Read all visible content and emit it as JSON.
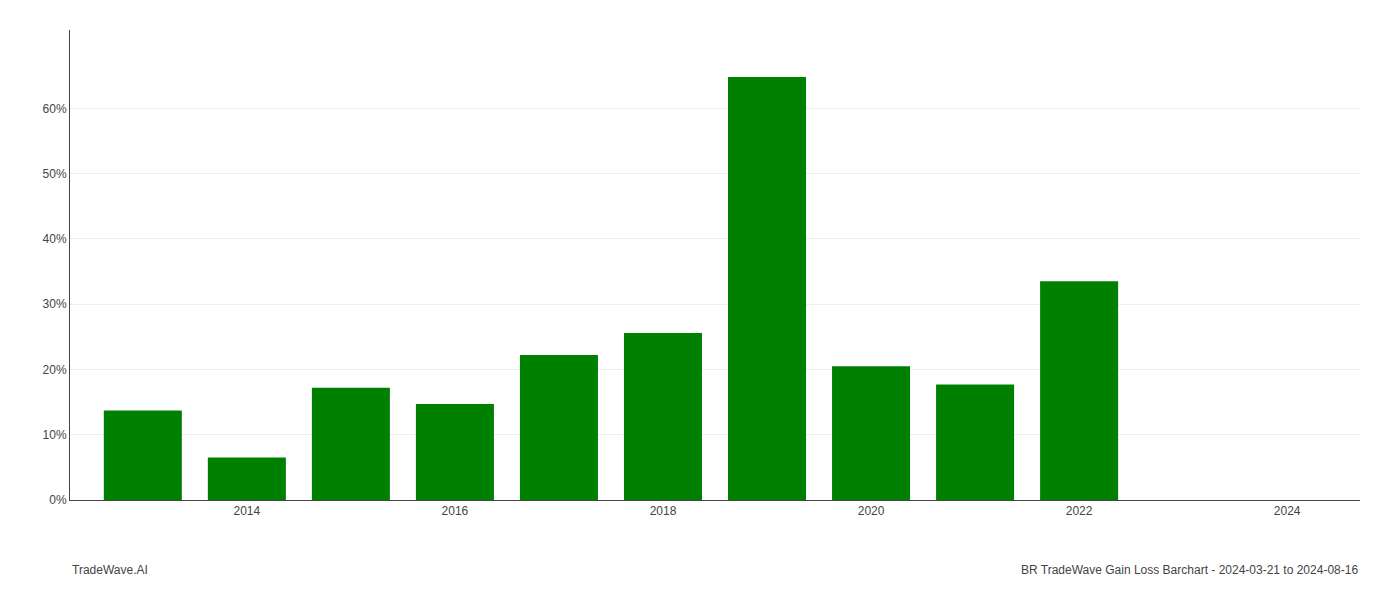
{
  "chart_data": {
    "type": "bar",
    "x": [
      2013,
      2014,
      2015,
      2016,
      2017,
      2018,
      2019,
      2020,
      2021,
      2022
    ],
    "values": [
      0.137,
      0.065,
      0.172,
      0.147,
      0.222,
      0.256,
      0.648,
      0.205,
      0.177,
      0.335
    ],
    "color": "#008000",
    "xlim": [
      2012.3,
      2024.7
    ],
    "xticks": [
      2014,
      2016,
      2018,
      2020,
      2022,
      2024
    ],
    "ylim": [
      0,
      0.72
    ],
    "yticks": [
      {
        "value": 0.0,
        "label": "0%"
      },
      {
        "value": 0.1,
        "label": "10%"
      },
      {
        "value": 0.2,
        "label": "20%"
      },
      {
        "value": 0.3,
        "label": "30%"
      },
      {
        "value": 0.4,
        "label": "40%"
      },
      {
        "value": 0.5,
        "label": "50%"
      },
      {
        "value": 0.6,
        "label": "60%"
      }
    ],
    "grid": "y",
    "annotations": [
      "TradeWave.AI",
      "BR TradeWave Gain Loss Barchart - 2024-03-21 to 2024-08-16"
    ]
  }
}
